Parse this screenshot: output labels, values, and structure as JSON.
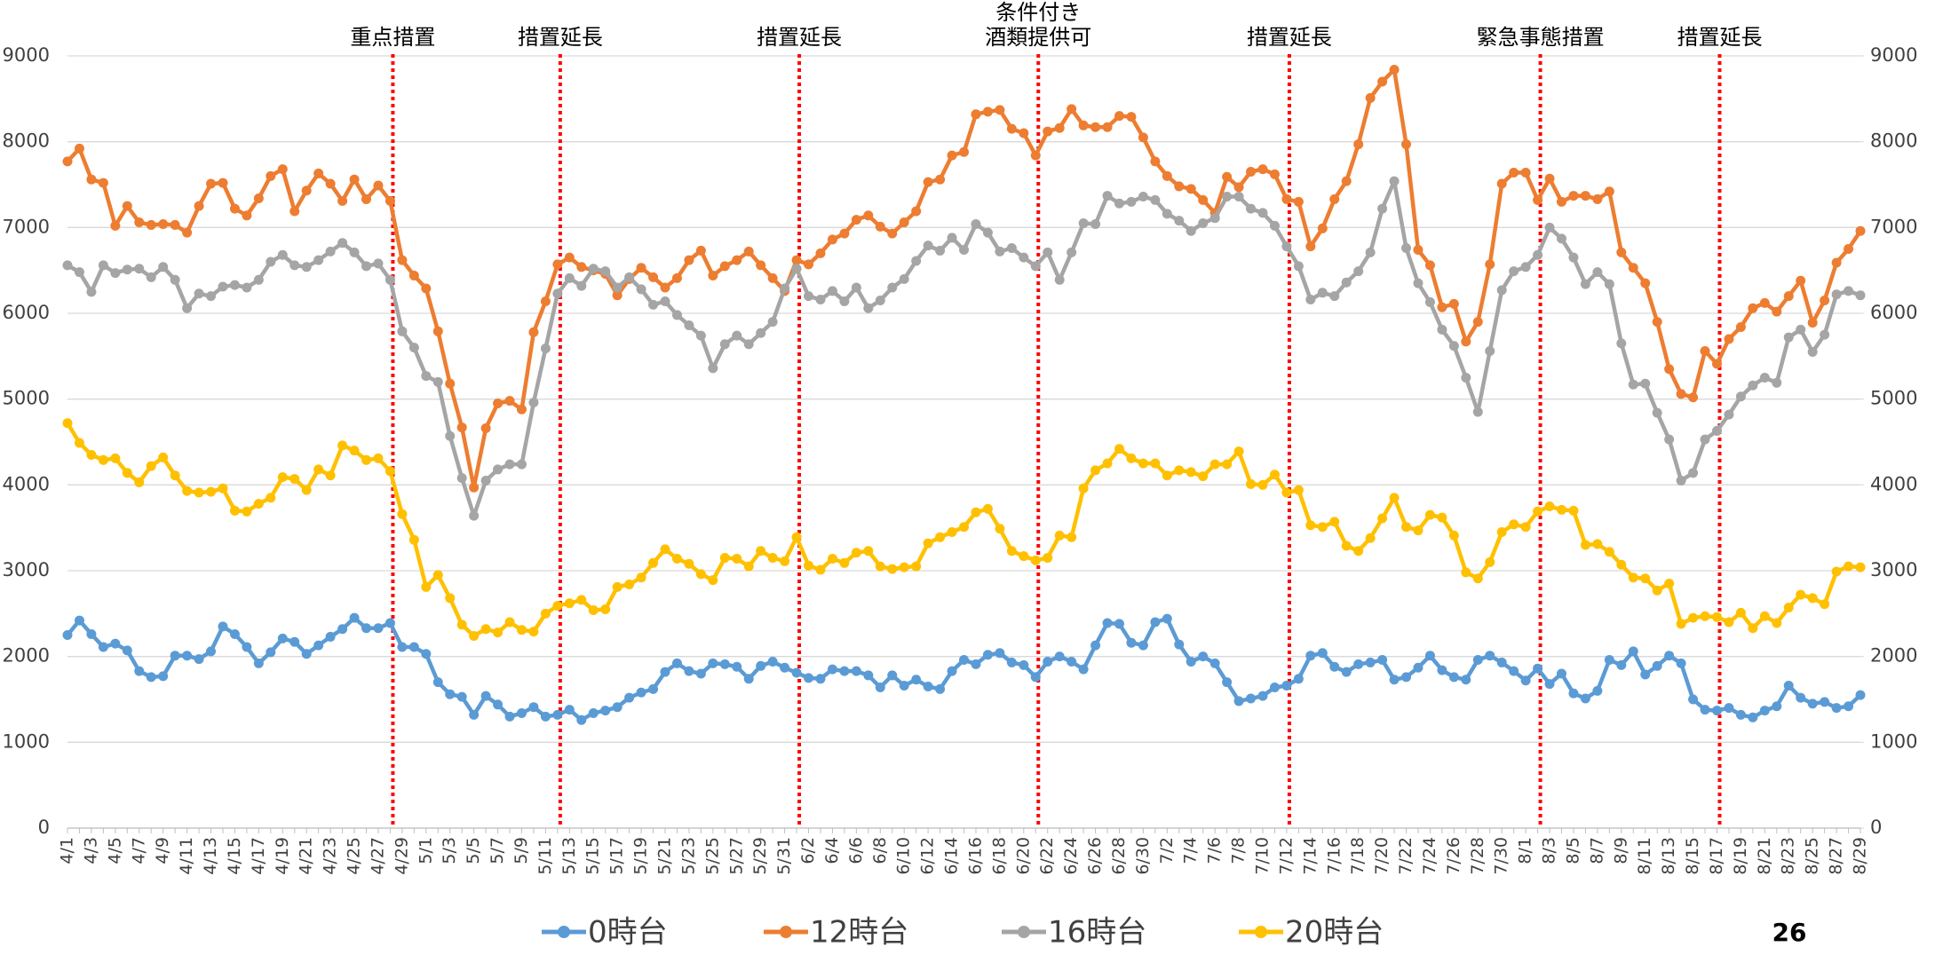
{
  "chart_data": {
    "type": "line",
    "categories": [
      "4/1",
      null,
      "4/3",
      null,
      "4/5",
      null,
      "4/7",
      null,
      "4/9",
      null,
      "4/11",
      null,
      "4/13",
      null,
      "4/15",
      null,
      "4/17",
      null,
      "4/19",
      null,
      "4/21",
      null,
      "4/23",
      null,
      "4/25",
      null,
      "4/27",
      null,
      "4/29",
      null,
      "5/1",
      null,
      "5/3",
      null,
      "5/5",
      null,
      "5/7",
      null,
      "5/9",
      null,
      "5/11",
      null,
      "5/13",
      null,
      "5/15",
      null,
      "5/17",
      null,
      "5/19",
      null,
      "5/21",
      null,
      "5/23",
      null,
      "5/25",
      null,
      "5/27",
      null,
      "5/29",
      null,
      "5/31",
      null,
      "6/2",
      null,
      "6/4",
      null,
      "6/6",
      null,
      "6/8",
      null,
      "6/10",
      null,
      "6/12",
      null,
      "6/14",
      null,
      "6/16",
      null,
      "6/18",
      null,
      "6/20",
      null,
      "6/22",
      null,
      "6/24",
      null,
      "6/26",
      null,
      "6/28",
      null,
      "6/30",
      null,
      "7/2",
      null,
      "7/4",
      null,
      "7/6",
      null,
      "7/8",
      null,
      "7/10",
      null,
      "7/12",
      null,
      "7/14",
      null,
      "7/16",
      null,
      "7/18",
      null,
      "7/20",
      null,
      "7/22",
      null,
      "7/24",
      null,
      "7/26",
      null,
      "7/28",
      null,
      "7/30",
      null,
      "8/1",
      null,
      "8/3",
      null,
      "8/5",
      null,
      "8/7",
      null,
      "8/9",
      null,
      "8/11",
      null,
      "8/13",
      null,
      "8/15",
      null,
      "8/17",
      null,
      "8/19",
      null,
      "8/21",
      null,
      "8/23",
      null,
      "8/25",
      null,
      "8/27",
      null,
      "8/29"
    ],
    "series": [
      {
        "name": "0時台",
        "color": "#5b9bd5",
        "values": [
          2250,
          2420,
          2260,
          2110,
          2150,
          2070,
          1830,
          1760,
          1770,
          2010,
          2010,
          1970,
          2060,
          2350,
          2260,
          2110,
          1920,
          2050,
          2210,
          2170,
          2030,
          2130,
          2230,
          2320,
          2450,
          2330,
          2330,
          2390,
          2110,
          2110,
          2030,
          1700,
          1560,
          1530,
          1320,
          1540,
          1440,
          1300,
          1340,
          1410,
          1300,
          1320,
          1380,
          1260,
          1340,
          1370,
          1410,
          1520,
          1580,
          1620,
          1820,
          1920,
          1830,
          1800,
          1920,
          1910,
          1880,
          1740,
          1890,
          1940,
          1870,
          1810,
          1750,
          1740,
          1850,
          1830,
          1830,
          1780,
          1640,
          1780,
          1660,
          1730,
          1650,
          1620,
          1830,
          1960,
          1910,
          2020,
          2040,
          1930,
          1900,
          1760,
          1940,
          2000,
          1940,
          1850,
          2130,
          2390,
          2380,
          2160,
          2130,
          2400,
          2440,
          2140,
          1940,
          2000,
          1920,
          1700,
          1480,
          1510,
          1540,
          1640,
          1660,
          1740,
          2010,
          2040,
          1880,
          1820,
          1910,
          1930,
          1960,
          1730,
          1760,
          1870,
          2010,
          1840,
          1760,
          1730,
          1960,
          2010,
          1930,
          1830,
          1720,
          1860,
          1680,
          1800,
          1570,
          1510,
          1600,
          1960,
          1900,
          2060,
          1790,
          1890,
          2010,
          1920,
          1500,
          1380,
          1370,
          1400,
          1320,
          1290,
          1370,
          1420,
          1660,
          1520,
          1450,
          1470,
          1400,
          1420,
          1550
        ]
      },
      {
        "name": "12時台",
        "color": "#ed7d31",
        "values": [
          7770,
          7920,
          7560,
          7520,
          7020,
          7250,
          7060,
          7030,
          7040,
          7030,
          6940,
          7250,
          7510,
          7520,
          7220,
          7140,
          7340,
          7600,
          7680,
          7190,
          7430,
          7630,
          7510,
          7310,
          7560,
          7330,
          7490,
          7310,
          6620,
          6440,
          6290,
          5790,
          5180,
          4670,
          3970,
          4660,
          4950,
          4980,
          4880,
          5780,
          6140,
          6570,
          6650,
          6540,
          6500,
          6460,
          6210,
          6400,
          6530,
          6420,
          6300,
          6410,
          6620,
          6730,
          6440,
          6550,
          6620,
          6720,
          6560,
          6410,
          6260,
          6620,
          6570,
          6700,
          6860,
          6930,
          7090,
          7140,
          7010,
          6930,
          7060,
          7190,
          7530,
          7560,
          7840,
          7880,
          8320,
          8350,
          8370,
          8150,
          8100,
          7840,
          8120,
          8160,
          8380,
          8190,
          8170,
          8170,
          8300,
          8290,
          8050,
          7770,
          7600,
          7480,
          7450,
          7320,
          7170,
          7590,
          7470,
          7650,
          7680,
          7620,
          7330,
          7300,
          6780,
          6990,
          7330,
          7540,
          7970,
          8510,
          8700,
          8840,
          7970,
          6740,
          6560,
          6070,
          6110,
          5670,
          5900,
          6570,
          7510,
          7640,
          7640,
          7320,
          7570,
          7300,
          7370,
          7370,
          7330,
          7420,
          6710,
          6530,
          6350,
          5900,
          5350,
          5060,
          5020,
          5560,
          5410,
          5700,
          5840,
          6060,
          6120,
          6020,
          6200,
          6380,
          5890,
          6150,
          6590,
          6750,
          6960
        ]
      },
      {
        "name": "16時台",
        "color": "#a5a5a5",
        "values": [
          6560,
          6480,
          6250,
          6560,
          6470,
          6510,
          6520,
          6420,
          6540,
          6390,
          6060,
          6230,
          6200,
          6310,
          6330,
          6300,
          6390,
          6600,
          6680,
          6560,
          6540,
          6620,
          6720,
          6820,
          6710,
          6550,
          6580,
          6390,
          5790,
          5600,
          5270,
          5200,
          4570,
          4080,
          3640,
          4050,
          4180,
          4240,
          4240,
          4960,
          5590,
          6230,
          6410,
          6320,
          6520,
          6490,
          6300,
          6420,
          6280,
          6100,
          6140,
          5980,
          5860,
          5740,
          5360,
          5640,
          5740,
          5640,
          5770,
          5900,
          6290,
          6520,
          6200,
          6160,
          6260,
          6140,
          6300,
          6060,
          6150,
          6300,
          6400,
          6610,
          6790,
          6730,
          6880,
          6740,
          7040,
          6940,
          6720,
          6760,
          6650,
          6550,
          6710,
          6390,
          6710,
          7050,
          7040,
          7370,
          7280,
          7300,
          7360,
          7320,
          7160,
          7080,
          6960,
          7050,
          7110,
          7360,
          7360,
          7220,
          7170,
          7020,
          6780,
          6550,
          6160,
          6240,
          6200,
          6360,
          6490,
          6710,
          7220,
          7540,
          6760,
          6350,
          6130,
          5810,
          5620,
          5250,
          4850,
          5560,
          6270,
          6490,
          6540,
          6680,
          7000,
          6870,
          6650,
          6340,
          6480,
          6340,
          5650,
          5170,
          5180,
          4840,
          4530,
          4050,
          4140,
          4530,
          4630,
          4820,
          5030,
          5160,
          5250,
          5190,
          5720,
          5810,
          5550,
          5750,
          6220,
          6260,
          6210
        ]
      },
      {
        "name": "20時台",
        "color": "#ffc000",
        "values": [
          4720,
          4490,
          4350,
          4290,
          4310,
          4140,
          4030,
          4220,
          4320,
          4110,
          3930,
          3910,
          3920,
          3960,
          3700,
          3690,
          3780,
          3850,
          4090,
          4070,
          3940,
          4180,
          4110,
          4460,
          4400,
          4290,
          4310,
          4160,
          3660,
          3360,
          2810,
          2950,
          2680,
          2370,
          2240,
          2320,
          2280,
          2400,
          2310,
          2290,
          2500,
          2590,
          2620,
          2660,
          2540,
          2550,
          2810,
          2840,
          2920,
          3090,
          3250,
          3140,
          3080,
          2960,
          2890,
          3150,
          3140,
          3050,
          3230,
          3150,
          3110,
          3390,
          3060,
          3010,
          3140,
          3090,
          3210,
          3230,
          3050,
          3020,
          3040,
          3050,
          3320,
          3390,
          3450,
          3510,
          3680,
          3720,
          3490,
          3230,
          3170,
          3120,
          3150,
          3410,
          3390,
          3960,
          4170,
          4250,
          4420,
          4310,
          4250,
          4250,
          4110,
          4170,
          4150,
          4100,
          4240,
          4240,
          4390,
          4010,
          4000,
          4120,
          3910,
          3940,
          3530,
          3510,
          3570,
          3290,
          3230,
          3380,
          3610,
          3850,
          3510,
          3470,
          3650,
          3620,
          3410,
          2980,
          2910,
          3100,
          3450,
          3540,
          3510,
          3690,
          3750,
          3710,
          3700,
          3300,
          3310,
          3220,
          3070,
          2920,
          2910,
          2770,
          2850,
          2380,
          2450,
          2470,
          2460,
          2400,
          2510,
          2330,
          2470,
          2390,
          2570,
          2720,
          2680,
          2610,
          2990,
          3050,
          3040
        ]
      }
    ],
    "ylim": [
      0,
      9000
    ],
    "yticks": [
      0,
      1000,
      2000,
      3000,
      4000,
      5000,
      6000,
      7000,
      8000,
      9000
    ],
    "y2lim": [
      0,
      9000
    ],
    "y2ticks": [
      0,
      1000,
      2000,
      3000,
      4000,
      5000,
      6000,
      7000,
      8000,
      9000
    ],
    "grid": true,
    "legend": "bottom",
    "marker": "circle",
    "annotations": [
      {
        "index": 27,
        "lines": [
          "重点措置"
        ],
        "color": "#ff0000"
      },
      {
        "index": 41,
        "lines": [
          "措置延長"
        ],
        "color": "#ff0000"
      },
      {
        "index": 61,
        "lines": [
          "措置延長"
        ],
        "color": "#ff0000"
      },
      {
        "index": 81,
        "lines": [
          "条件付き",
          "酒類提供可"
        ],
        "color": "#ff0000"
      },
      {
        "index": 102,
        "lines": [
          "措置延長"
        ],
        "color": "#ff0000"
      },
      {
        "index": 123,
        "lines": [
          "緊急事態措置"
        ],
        "color": "#ff0000"
      },
      {
        "index": 138,
        "lines": [
          "措置延長"
        ],
        "color": "#ff0000"
      }
    ]
  },
  "page_number": "26"
}
